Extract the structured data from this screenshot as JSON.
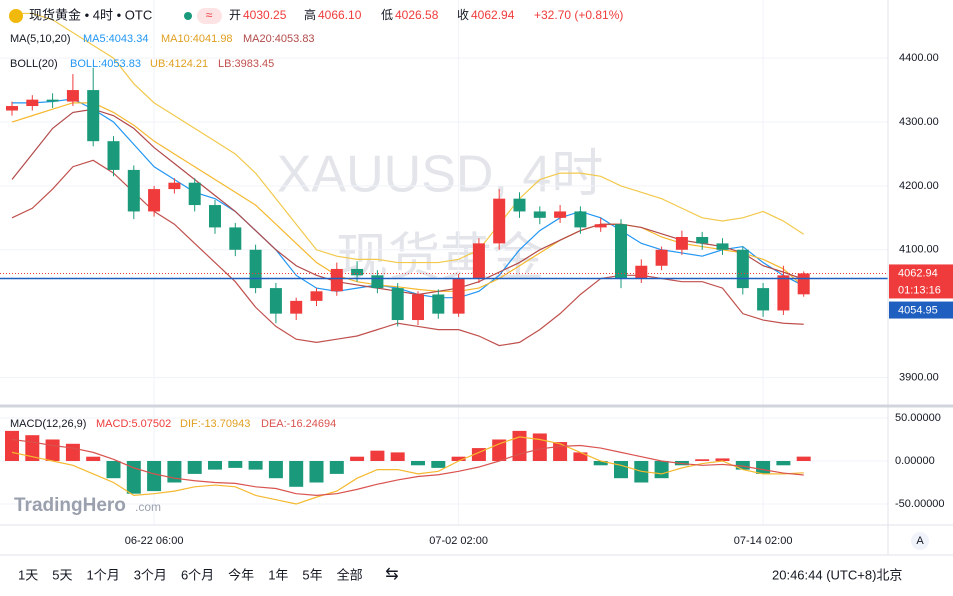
{
  "header": {
    "symbol": "现货黄金 • 4时 • OTC",
    "open_key": "开",
    "open": "4030.25",
    "high_key": "高",
    "high": "4066.10",
    "low_key": "低",
    "low": "4026.58",
    "close_key": "收",
    "close": "4062.94",
    "change": "+32.70 (+0.81%)",
    "ma_title": "MA(5,10,20)",
    "ma5": "MA5:4043.34",
    "ma10": "MA10:4041.98",
    "ma20": "MA20:4053.83",
    "boll_title": "BOLL(20)",
    "boll": "BOLL:4053.83",
    "ub": "UB:4124.21",
    "lb": "LB:3983.45",
    "macd_title": "MACD(12,26,9)",
    "macd": "MACD:5.07502",
    "dif": "DIF:-13.70943",
    "dea": "DEA:-16.24694"
  },
  "watermark": {
    "line1": "XAUUSD, 4时",
    "line2": "现货黄金"
  },
  "logo": "TradingHero",
  "logo_suffix": ".com",
  "toolbar": {
    "ranges": [
      "1天",
      "5天",
      "1个月",
      "3个月",
      "6个月",
      "今年",
      "1年",
      "5年",
      "全部"
    ],
    "clock": "20:46:44 (UTC+8)北京",
    "scale_button": "A"
  },
  "chart_data": {
    "type": "candlestick",
    "grid": true,
    "up_color": "#ef3b3b",
    "down_color": "#1a9a7a",
    "categories": [
      null,
      null,
      null,
      null,
      null,
      null,
      null,
      "06-22 06:00",
      null,
      null,
      null,
      null,
      null,
      null,
      null,
      null,
      null,
      null,
      null,
      null,
      null,
      null,
      "07-02 02:00",
      null,
      null,
      null,
      null,
      null,
      null,
      null,
      null,
      null,
      null,
      null,
      null,
      null,
      null,
      "07-14 02:00",
      null,
      null
    ],
    "open": [
      4318,
      4325,
      4335,
      4332,
      4350,
      4270,
      4225,
      4160,
      4195,
      4205,
      4170,
      4135,
      4100,
      4040,
      4000,
      4020,
      4035,
      4070,
      4060,
      4040,
      3990,
      4030,
      4000,
      4055,
      4110,
      4180,
      4160,
      4150,
      4160,
      4135,
      4140,
      4055,
      4075,
      4100,
      4120,
      4110,
      4100,
      4040,
      4005,
      4030.25
    ],
    "high": [
      4332,
      4342,
      4345,
      4375,
      4385,
      4278,
      4232,
      4200,
      4212,
      4212,
      4178,
      4142,
      4108,
      4048,
      4025,
      4040,
      4080,
      4082,
      4068,
      4048,
      4035,
      4038,
      4062,
      4118,
      4195,
      4190,
      4168,
      4170,
      4168,
      4150,
      4148,
      4085,
      4105,
      4130,
      4128,
      4118,
      4105,
      4048,
      4075,
      4066.1
    ],
    "low": [
      4310,
      4318,
      4322,
      4325,
      4262,
      4215,
      4148,
      4152,
      4188,
      4160,
      4125,
      4090,
      4032,
      3985,
      3990,
      4012,
      4028,
      4050,
      4032,
      3980,
      3982,
      3992,
      3995,
      4048,
      4100,
      4150,
      4140,
      4142,
      4125,
      4128,
      4040,
      4048,
      4068,
      4092,
      4100,
      4092,
      4030,
      3995,
      3998,
      4026.58
    ],
    "close": [
      4325,
      4335,
      4332,
      4350,
      4270,
      4225,
      4160,
      4195,
      4205,
      4170,
      4135,
      4100,
      4040,
      4000,
      4020,
      4035,
      4070,
      4060,
      4040,
      3990,
      4030,
      4000,
      4055,
      4110,
      4180,
      4160,
      4150,
      4160,
      4135,
      4140,
      4055,
      4075,
      4100,
      4120,
      4110,
      4100,
      4040,
      4005,
      4060,
      4062.94
    ],
    "series": [
      {
        "name": "MA5",
        "color": "#2196f3",
        "values": [
          4330,
          4330,
          4332,
          4336,
          4320,
          4300,
          4265,
          4230,
          4210,
          4190,
          4180,
          4160,
          4130,
          4100,
          4060,
          4040,
          4035,
          4040,
          4045,
          4040,
          4030,
          4025,
          4025,
          4035,
          4060,
          4100,
          4130,
          4150,
          4160,
          4150,
          4130,
          4110,
          4100,
          4095,
          4090,
          4100,
          4105,
          4080,
          4060,
          4043.34
        ]
      },
      {
        "name": "MA10",
        "color": "#f5b82e",
        "values": [
          4300,
          4310,
          4320,
          4330,
          4330,
          4315,
          4295,
          4270,
          4250,
          4230,
          4210,
          4190,
          4170,
          4140,
          4110,
          4080,
          4060,
          4050,
          4045,
          4042,
          4038,
          4035,
          4035,
          4040,
          4055,
          4075,
          4095,
          4115,
          4130,
          4140,
          4140,
          4135,
          4120,
          4110,
          4105,
          4100,
          4095,
          4085,
          4070,
          4041.98
        ]
      },
      {
        "name": "MA20",
        "color": "#b24a4a",
        "values": [
          4210,
          4250,
          4290,
          4315,
          4320,
          4310,
          4290,
          4260,
          4235,
          4210,
          4185,
          4160,
          4130,
          4100,
          4075,
          4060,
          4050,
          4045,
          4040,
          4035,
          4030,
          4035,
          4040,
          4050,
          4065,
          4080,
          4100,
          4115,
          4130,
          4140,
          4140,
          4135,
          4125,
          4115,
          4110,
          4105,
          4095,
          4075,
          4065,
          4053.83
        ]
      },
      {
        "name": "UB",
        "color": "#f2c94c",
        "values": [
          4470,
          4470,
          4460,
          4440,
          4420,
          4400,
          4360,
          4330,
          4310,
          4290,
          4270,
          4250,
          4220,
          4180,
          4140,
          4100,
          4090,
          4085,
          4085,
          4080,
          4080,
          4080,
          4085,
          4100,
          4140,
          4180,
          4210,
          4220,
          4220,
          4215,
          4200,
          4190,
          4180,
          4165,
          4150,
          4145,
          4150,
          4160,
          4145,
          4124.21
        ]
      },
      {
        "name": "LB",
        "color": "#c0504d",
        "values": [
          4150,
          4165,
          4195,
          4230,
          4240,
          4220,
          4190,
          4160,
          4140,
          4110,
          4080,
          4050,
          4010,
          3980,
          3960,
          3955,
          3960,
          3965,
          3975,
          3985,
          3980,
          3975,
          3975,
          3965,
          3950,
          3955,
          3975,
          4000,
          4030,
          4055,
          4060,
          4060,
          4055,
          4050,
          4050,
          4040,
          4000,
          3990,
          3985,
          3983.45
        ]
      }
    ],
    "ylim": [
      3857,
      4491
    ],
    "yticks": [
      {
        "value": 4400,
        "label": "4400.00"
      },
      {
        "value": 4300,
        "label": "4300.00"
      },
      {
        "value": 4200,
        "label": "4200.00"
      },
      {
        "value": 4100,
        "label": "4100.00"
      },
      {
        "value": 3900,
        "label": "3900.00"
      }
    ],
    "last_price": 4062.94,
    "countdown": "01:13:16",
    "line_price": 4054.95,
    "macd": {
      "hist": [
        35,
        30,
        25,
        20,
        5,
        -20,
        -38,
        -35,
        -25,
        -15,
        -10,
        -8,
        -10,
        -20,
        -30,
        -25,
        -15,
        5,
        12,
        10,
        -5,
        -8,
        5,
        15,
        25,
        35,
        32,
        22,
        10,
        -5,
        -20,
        -25,
        -20,
        -5,
        2,
        3,
        -10,
        -15,
        -5,
        5.07502
      ],
      "dif": {
        "color": "#f5b82e",
        "values": [
          10,
          5,
          0,
          -5,
          -15,
          -25,
          -40,
          -38,
          -35,
          -30,
          -28,
          -30,
          -40,
          -45,
          -50,
          -42,
          -35,
          -20,
          -10,
          -10,
          -15,
          -12,
          0,
          10,
          20,
          28,
          25,
          20,
          10,
          0,
          -5,
          -12,
          -15,
          -8,
          -3,
          0,
          -10,
          -15,
          -15,
          -13.70943
        ]
      },
      "dea": {
        "color": "#d9534f",
        "values": [
          25,
          22,
          18,
          15,
          10,
          2,
          -8,
          -15,
          -20,
          -23,
          -25,
          -26,
          -30,
          -32,
          -38,
          -40,
          -38,
          -33,
          -27,
          -22,
          -18,
          -16,
          -12,
          -7,
          0,
          8,
          14,
          17,
          18,
          15,
          10,
          5,
          0,
          -3,
          -5,
          -4,
          -6,
          -10,
          -14,
          -16.24694
        ]
      },
      "ylim": [
        -74.4,
        61.6
      ],
      "yticks": [
        {
          "value": 50,
          "label": "50.00000"
        },
        {
          "value": 0,
          "label": "0.00000"
        },
        {
          "value": -50,
          "label": "-50.00000"
        }
      ]
    }
  }
}
